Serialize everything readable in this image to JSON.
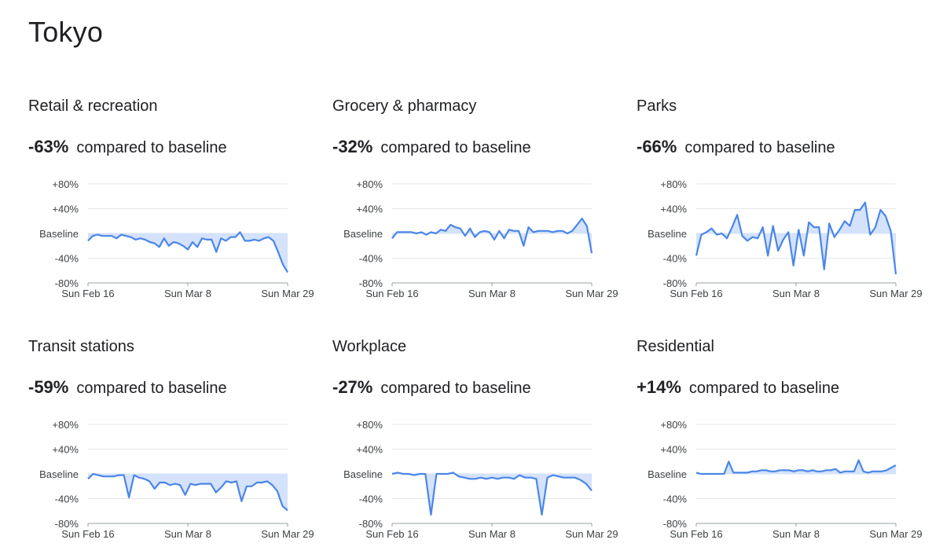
{
  "city": "Tokyo",
  "compare_text": "compared to baseline",
  "colors": {
    "line": "#4a86e8",
    "band": "#d4e2fb",
    "grid": "#e6e6e6",
    "axis": "#9aa0a6"
  },
  "chart_data": [
    {
      "type": "line",
      "title": "Retail & recreation",
      "headline": "-63%",
      "y_ticks": [
        80,
        40,
        0,
        -40,
        -80
      ],
      "y_tick_labels": [
        "+80%",
        "+40%",
        "Baseline",
        "-40%",
        "-80%"
      ],
      "ylim": [
        -80,
        80
      ],
      "x_ticks": [
        "Sun Feb 16",
        "Sun Mar 8",
        "Sun Mar 29"
      ],
      "xlabel": "",
      "ylabel": "",
      "values": [
        -12,
        -4,
        -2,
        -4,
        -4,
        -4,
        -8,
        -2,
        -4,
        -6,
        -10,
        -8,
        -10,
        -14,
        -16,
        -22,
        -8,
        -20,
        -14,
        -16,
        -20,
        -26,
        -14,
        -22,
        -8,
        -10,
        -10,
        -30,
        -8,
        -12,
        -6,
        -6,
        2,
        -12,
        -12,
        -10,
        -12,
        -8,
        -6,
        -12,
        -30,
        -50,
        -63
      ]
    },
    {
      "type": "line",
      "title": "Grocery & pharmacy",
      "headline": "-32%",
      "y_ticks": [
        80,
        40,
        0,
        -40,
        -80
      ],
      "y_tick_labels": [
        "+80%",
        "+40%",
        "Baseline",
        "-40%",
        "-80%"
      ],
      "ylim": [
        -80,
        80
      ],
      "x_ticks": [
        "Sun Feb 16",
        "Sun Mar 8",
        "Sun Mar 29"
      ],
      "xlabel": "",
      "ylabel": "",
      "values": [
        -8,
        2,
        2,
        2,
        2,
        0,
        2,
        -2,
        2,
        0,
        6,
        4,
        14,
        10,
        8,
        -4,
        8,
        -6,
        2,
        4,
        2,
        -10,
        4,
        -8,
        6,
        4,
        4,
        -20,
        10,
        2,
        4,
        4,
        4,
        2,
        4,
        4,
        0,
        4,
        14,
        24,
        12,
        -32
      ]
    },
    {
      "type": "line",
      "title": "Parks",
      "headline": "-66%",
      "y_ticks": [
        80,
        40,
        0,
        -40,
        -80
      ],
      "y_tick_labels": [
        "+80%",
        "+40%",
        "Baseline",
        "-40%",
        "-80%"
      ],
      "ylim": [
        -80,
        80
      ],
      "x_ticks": [
        "Sun Feb 16",
        "Sun Mar 8",
        "Sun Mar 29"
      ],
      "xlabel": "",
      "ylabel": "",
      "values": [
        -36,
        -2,
        2,
        8,
        -2,
        0,
        -8,
        10,
        30,
        -4,
        -12,
        -6,
        -8,
        10,
        -36,
        12,
        -28,
        -10,
        2,
        -52,
        6,
        -36,
        18,
        10,
        10,
        -58,
        16,
        -6,
        6,
        20,
        12,
        38,
        38,
        50,
        -2,
        10,
        38,
        28,
        4,
        -66
      ]
    },
    {
      "type": "line",
      "title": "Transit stations",
      "headline": "-59%",
      "y_ticks": [
        80,
        40,
        0,
        -40,
        -80
      ],
      "y_tick_labels": [
        "+80%",
        "+40%",
        "Baseline",
        "-40%",
        "-80%"
      ],
      "ylim": [
        -80,
        80
      ],
      "x_ticks": [
        "Sun Feb 16",
        "Sun Mar 8",
        "Sun Mar 29"
      ],
      "xlabel": "",
      "ylabel": "",
      "values": [
        -8,
        0,
        -2,
        -4,
        -4,
        -4,
        -2,
        -2,
        -38,
        -2,
        -6,
        -8,
        -12,
        -24,
        -14,
        -14,
        -18,
        -16,
        -18,
        -34,
        -16,
        -18,
        -16,
        -16,
        -16,
        -30,
        -22,
        -12,
        -14,
        -12,
        -44,
        -20,
        -20,
        -14,
        -14,
        -12,
        -18,
        -28,
        -52,
        -59
      ]
    },
    {
      "type": "line",
      "title": "Workplace",
      "headline": "-27%",
      "y_ticks": [
        80,
        40,
        0,
        -40,
        -80
      ],
      "y_tick_labels": [
        "+80%",
        "+40%",
        "Baseline",
        "-40%",
        "-80%"
      ],
      "ylim": [
        -80,
        80
      ],
      "x_ticks": [
        "Sun Feb 16",
        "Sun Mar 8",
        "Sun Mar 29"
      ],
      "xlabel": "",
      "ylabel": "",
      "values": [
        0,
        2,
        0,
        0,
        -2,
        0,
        0,
        -66,
        0,
        0,
        0,
        2,
        -4,
        -6,
        -8,
        -8,
        -6,
        -8,
        -6,
        -8,
        -6,
        -6,
        -8,
        -2,
        -6,
        -6,
        -8,
        -66,
        -6,
        -2,
        -4,
        -6,
        -6,
        -6,
        -10,
        -16,
        -27
      ]
    },
    {
      "type": "line",
      "title": "Residential",
      "headline": "+14%",
      "y_ticks": [
        80,
        40,
        0,
        -40,
        -80
      ],
      "y_tick_labels": [
        "+80%",
        "+40%",
        "Baseline",
        "-40%",
        "-80%"
      ],
      "ylim": [
        -80,
        80
      ],
      "x_ticks": [
        "Sun Feb 16",
        "Sun Mar 8",
        "Sun Mar 29"
      ],
      "xlabel": "",
      "ylabel": "",
      "values": [
        2,
        0,
        0,
        0,
        0,
        0,
        0,
        20,
        2,
        2,
        2,
        2,
        4,
        4,
        6,
        6,
        4,
        4,
        6,
        6,
        6,
        4,
        6,
        6,
        4,
        6,
        4,
        4,
        6,
        6,
        8,
        2,
        4,
        4,
        4,
        22,
        4,
        2,
        4,
        4,
        4,
        6,
        10,
        14
      ]
    }
  ]
}
